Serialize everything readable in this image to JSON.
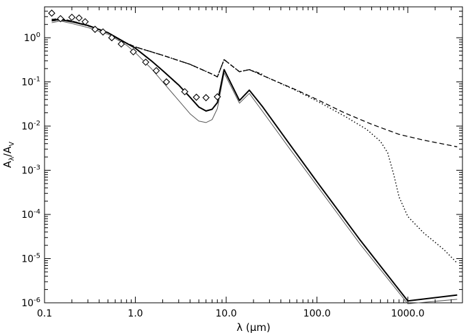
{
  "chart_data": {
    "type": "line",
    "x_scale": "log",
    "y_scale": "log",
    "xlim": [
      0.1,
      4000
    ],
    "ylim": [
      1e-06,
      5
    ],
    "grid": false,
    "legend": "none",
    "xlabel": "λ (μm)",
    "ylabel": "Aλ/AV",
    "ylabel_parts": {
      "main1": "A",
      "sub1": "λ",
      "slash": "/",
      "main2": "A",
      "sub2": "V"
    },
    "x_ticks": [
      {
        "value": 0.1,
        "label": "0.1"
      },
      {
        "value": 1,
        "label": "1.0"
      },
      {
        "value": 10,
        "label": "10.0"
      },
      {
        "value": 100,
        "label": "100.0"
      },
      {
        "value": 1000,
        "label": "1000.0"
      }
    ],
    "y_ticks": [
      {
        "value": 1,
        "base": "10",
        "exp": "0"
      },
      {
        "value": 0.1,
        "base": "10",
        "exp": "-1"
      },
      {
        "value": 0.01,
        "base": "10",
        "exp": "-2"
      },
      {
        "value": 0.001,
        "base": "10",
        "exp": "-3"
      },
      {
        "value": 0.0001,
        "base": "10",
        "exp": "-4"
      },
      {
        "value": 1e-05,
        "base": "10",
        "exp": "-5"
      },
      {
        "value": 1e-06,
        "base": "10",
        "exp": "-6"
      }
    ],
    "series": [
      {
        "style": "thin-solid",
        "color": "#555555",
        "points": [
          [
            0.12,
            2.2
          ],
          [
            0.15,
            2.4
          ],
          [
            0.2,
            2.1
          ],
          [
            0.3,
            1.7
          ],
          [
            0.5,
            1.2
          ],
          [
            0.8,
            0.68
          ],
          [
            1.0,
            0.46
          ],
          [
            1.5,
            0.2
          ],
          [
            2.0,
            0.1
          ],
          [
            3.0,
            0.038
          ],
          [
            4.0,
            0.019
          ],
          [
            5.0,
            0.013
          ],
          [
            6.0,
            0.012
          ],
          [
            7.0,
            0.014
          ],
          [
            8.0,
            0.025
          ],
          [
            9.5,
            0.16
          ],
          [
            14.0,
            0.033
          ],
          [
            18.0,
            0.055
          ],
          [
            25.0,
            0.022
          ],
          [
            50.0,
            0.0031
          ],
          [
            100.0,
            0.00045
          ],
          [
            300.0,
            2.1e-05
          ],
          [
            1000.0,
            9.5e-07
          ],
          [
            3500.0,
            1.2e-06
          ]
        ]
      },
      {
        "style": "thick-solid",
        "color": "#000000",
        "points": [
          [
            0.12,
            2.5
          ],
          [
            0.15,
            2.55
          ],
          [
            0.2,
            2.3
          ],
          [
            0.3,
            1.9
          ],
          [
            0.5,
            1.3
          ],
          [
            0.8,
            0.75
          ],
          [
            1.0,
            0.58
          ],
          [
            1.5,
            0.3
          ],
          [
            2.0,
            0.18
          ],
          [
            3.0,
            0.085
          ],
          [
            4.0,
            0.045
          ],
          [
            5.0,
            0.027
          ],
          [
            6.0,
            0.022
          ],
          [
            7.0,
            0.024
          ],
          [
            8.0,
            0.034
          ],
          [
            9.5,
            0.19
          ],
          [
            14.0,
            0.038
          ],
          [
            18.0,
            0.065
          ],
          [
            25.0,
            0.028
          ],
          [
            50.0,
            0.0039
          ],
          [
            100.0,
            0.00055
          ],
          [
            300.0,
            2.6e-05
          ],
          [
            1000.0,
            1.1e-06
          ],
          [
            3500.0,
            1.5e-06
          ]
        ]
      },
      {
        "style": "dashed",
        "color": "#000000",
        "points": [
          [
            0.12,
            2.6
          ],
          [
            0.15,
            2.7
          ],
          [
            0.2,
            2.4
          ],
          [
            0.3,
            1.9
          ],
          [
            0.5,
            1.3
          ],
          [
            0.7,
            0.85
          ],
          [
            1.0,
            0.62
          ],
          [
            2.0,
            0.4
          ],
          [
            4.0,
            0.25
          ],
          [
            7.0,
            0.15
          ],
          [
            8.0,
            0.13
          ],
          [
            9.5,
            0.32
          ],
          [
            14.0,
            0.17
          ],
          [
            18.0,
            0.19
          ],
          [
            30.0,
            0.12
          ],
          [
            60.0,
            0.065
          ],
          [
            100.0,
            0.04
          ],
          [
            200.0,
            0.02
          ],
          [
            400.0,
            0.011
          ],
          [
            800.0,
            0.0065
          ],
          [
            1500.0,
            0.0048
          ],
          [
            3500.0,
            0.0034
          ]
        ]
      },
      {
        "style": "dotted",
        "color": "#000000",
        "points": [
          [
            0.12,
            2.6
          ],
          [
            0.15,
            2.7
          ],
          [
            0.2,
            2.4
          ],
          [
            0.3,
            1.9
          ],
          [
            0.5,
            1.3
          ],
          [
            0.7,
            0.85
          ],
          [
            1.0,
            0.62
          ],
          [
            2.0,
            0.4
          ],
          [
            4.0,
            0.25
          ],
          [
            7.0,
            0.15
          ],
          [
            8.0,
            0.13
          ],
          [
            9.5,
            0.32
          ],
          [
            14.0,
            0.17
          ],
          [
            18.0,
            0.19
          ],
          [
            30.0,
            0.12
          ],
          [
            60.0,
            0.063
          ],
          [
            100.0,
            0.037
          ],
          [
            200.0,
            0.017
          ],
          [
            350.0,
            0.0085
          ],
          [
            500.0,
            0.0045
          ],
          [
            600.0,
            0.0025
          ],
          [
            700.0,
            0.0008
          ],
          [
            800.0,
            0.00025
          ],
          [
            1000.0,
            9e-05
          ],
          [
            1500.0,
            3.8e-05
          ],
          [
            2500.0,
            1.6e-05
          ],
          [
            3500.0,
            7.9e-06
          ]
        ]
      },
      {
        "style": "dash-dot",
        "color": "#000000",
        "points": [
          [
            0.12,
            2.4
          ],
          [
            0.15,
            2.55
          ],
          [
            0.2,
            2.3
          ],
          [
            0.3,
            1.85
          ],
          [
            0.5,
            1.3
          ],
          [
            0.7,
            0.85
          ],
          [
            1.0,
            0.62
          ],
          [
            2.0,
            0.4
          ],
          [
            4.0,
            0.25
          ],
          [
            7.0,
            0.15
          ],
          [
            8.0,
            0.13
          ],
          [
            9.5,
            0.32
          ],
          [
            14.0,
            0.17
          ],
          [
            18.0,
            0.19
          ],
          [
            25.0,
            0.15
          ]
        ]
      },
      {
        "style": "diamonds",
        "color": "#000000",
        "points": [
          [
            0.12,
            3.6
          ],
          [
            0.15,
            2.7
          ],
          [
            0.2,
            2.9
          ],
          [
            0.24,
            2.8
          ],
          [
            0.28,
            2.3
          ],
          [
            0.36,
            1.55
          ],
          [
            0.44,
            1.35
          ],
          [
            0.55,
            1.0
          ],
          [
            0.7,
            0.72
          ],
          [
            0.95,
            0.48
          ],
          [
            1.3,
            0.28
          ],
          [
            1.7,
            0.18
          ],
          [
            2.2,
            0.1
          ],
          [
            3.5,
            0.06
          ],
          [
            4.7,
            0.045
          ],
          [
            6.0,
            0.044
          ],
          [
            8.0,
            0.046
          ]
        ]
      }
    ]
  }
}
